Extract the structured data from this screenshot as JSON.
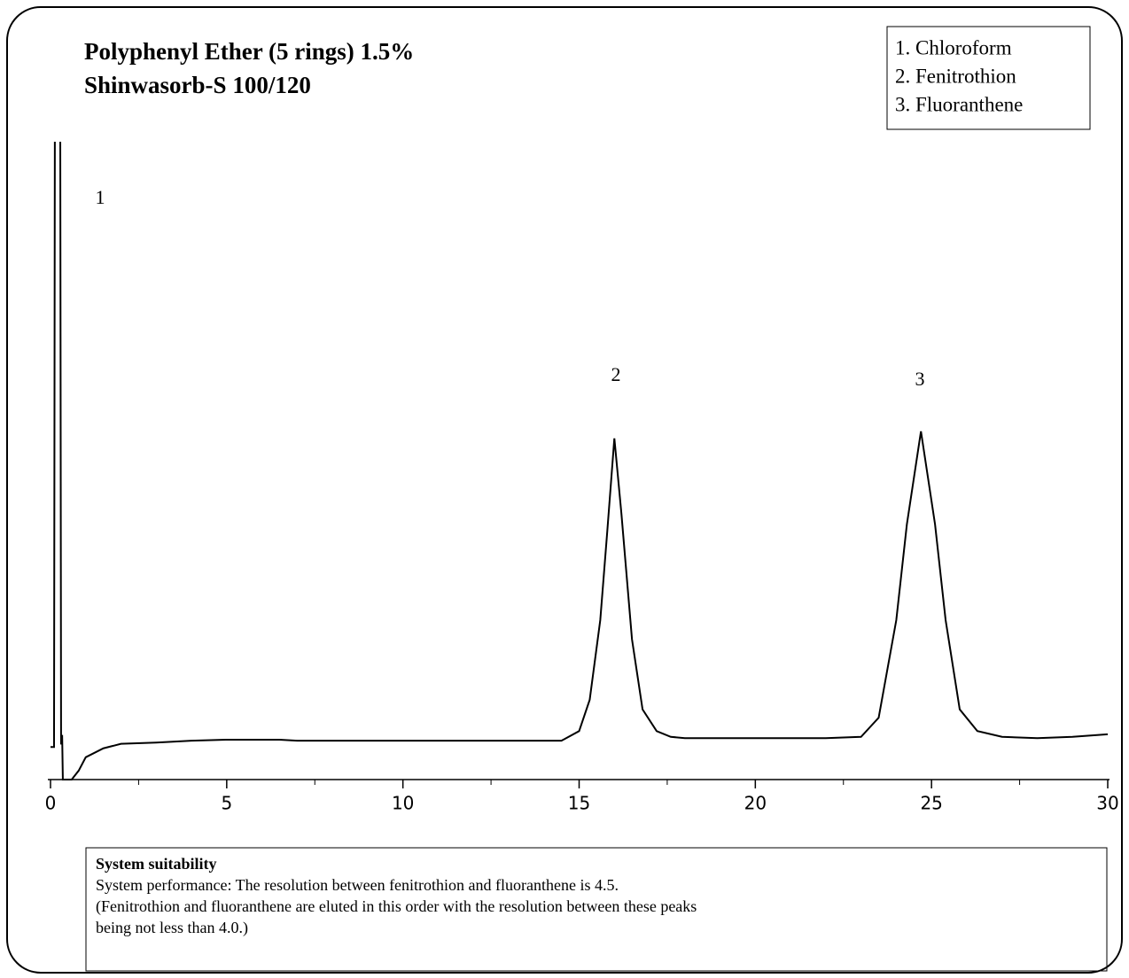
{
  "chart_data": {
    "type": "line",
    "title": [
      "Polyphenyl Ether (5 rings) 1.5%",
      "Shinwasorb-S 100/120"
    ],
    "legend_box": [
      "1. Chloroform",
      "2. Fenitrothion",
      "3. Fluoranthene"
    ],
    "annotations": [
      "1",
      "2",
      "3"
    ],
    "x": [
      0,
      0.1,
      0.13,
      0.27,
      0.3,
      0.33,
      0.35,
      0.6,
      0.8,
      1,
      1.5,
      2,
      3,
      4,
      5,
      6.5,
      7,
      12.5,
      14.5,
      15,
      15.3,
      15.6,
      15.8,
      16,
      16.2,
      16.5,
      16.8,
      17.2,
      17.6,
      18,
      20,
      22,
      23,
      23.5,
      24,
      24.3,
      24.7,
      25.1,
      25.4,
      25.8,
      26.3,
      27,
      28,
      29,
      30
    ],
    "series": [
      {
        "color": "#000000",
        "values": [
          5.1,
          5.1,
          130,
          130,
          5.5,
          7,
          0,
          0,
          1.4,
          3.5,
          4.9,
          5.6,
          5.8,
          6.1,
          6.25,
          6.25,
          6.1,
          6.1,
          6.1,
          7.6,
          12.5,
          25,
          39,
          53.5,
          41.7,
          22,
          11,
          7.6,
          6.7,
          6.5,
          6.5,
          6.5,
          6.7,
          9.7,
          25,
          40,
          54.6,
          40,
          25,
          11,
          7.6,
          6.7,
          6.5,
          6.7,
          7.1
        ]
      }
    ],
    "xlim": [
      0,
      30
    ],
    "ylim": [
      0,
      100
    ],
    "xticks": [
      0,
      5,
      10,
      15,
      20,
      25,
      30
    ],
    "xminorticks": [
      2.5,
      7.5,
      12.5,
      17.5,
      22.5,
      27.5
    ],
    "note": {
      "heading": "System suitability",
      "lines": [
        "System performance: The resolution between fenitrothion and fluoranthene is 4.5.",
        "(Fenitrothion and fluoranthene are eluted in this order with the resolution between these peaks",
        "being not less than 4.0.)"
      ]
    }
  }
}
